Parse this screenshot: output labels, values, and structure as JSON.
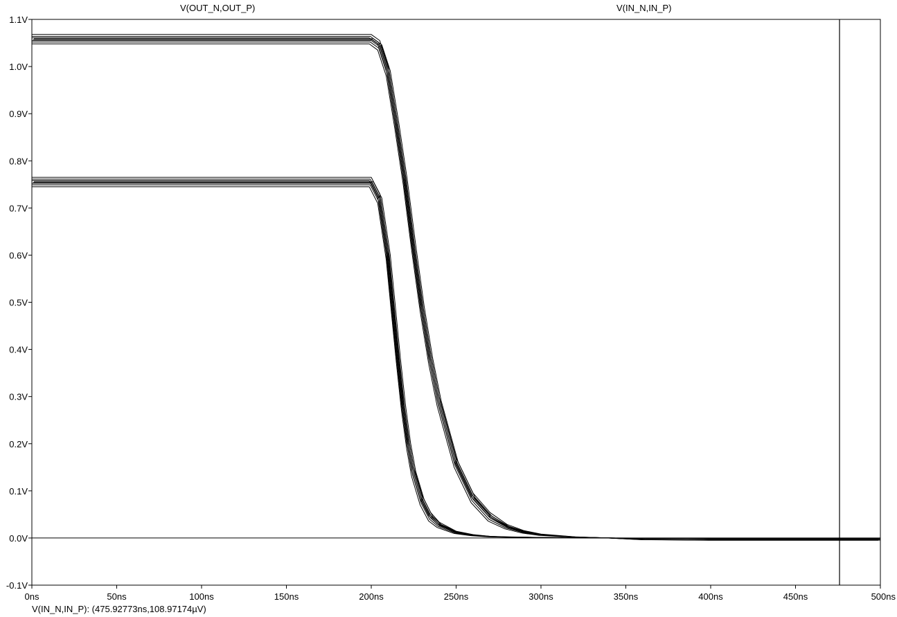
{
  "traces": {
    "out_label": "V(OUT_N,OUT_P)",
    "in_label": "V(IN_N,IN_P)"
  },
  "cursor": {
    "readout": "V(IN_N,IN_P): (475.92773ns,108.97174µV)",
    "time_ns": 475.92773
  },
  "chart_data": {
    "type": "line",
    "xlabel": "",
    "ylabel": "",
    "xlim": [
      0,
      500
    ],
    "ylim": [
      -0.1,
      1.1
    ],
    "x_ticks": [
      0,
      50,
      100,
      150,
      200,
      250,
      300,
      350,
      400,
      450,
      500
    ],
    "x_tick_labels": [
      "0ns",
      "50ns",
      "100ns",
      "150ns",
      "200ns",
      "250ns",
      "300ns",
      "350ns",
      "400ns",
      "450ns",
      "500ns"
    ],
    "y_ticks": [
      -0.1,
      0.0,
      0.1,
      0.2,
      0.3,
      0.4,
      0.5,
      0.6,
      0.7,
      0.8,
      0.9,
      1.0,
      1.1
    ],
    "y_tick_labels": [
      "-0.1V",
      "0.0V",
      "0.1V",
      "0.2V",
      "0.3V",
      "0.4V",
      "0.5V",
      "0.6V",
      "0.7V",
      "0.8V",
      "0.9V",
      "1.0V",
      "1.1V"
    ],
    "grid": false,
    "series": [
      {
        "x": [
          0,
          200,
          205,
          210,
          215,
          220,
          225,
          230,
          235,
          240,
          250,
          260,
          270,
          280,
          290,
          300,
          320,
          340,
          360,
          400,
          500
        ],
        "values": [
          1.058,
          1.058,
          1.045,
          0.99,
          0.88,
          0.76,
          0.62,
          0.49,
          0.38,
          0.29,
          0.16,
          0.085,
          0.045,
          0.024,
          0.013,
          0.007,
          0.002,
          0.0,
          -0.003,
          -0.004,
          -0.004
        ]
      },
      {
        "x": [
          0,
          200,
          205,
          210,
          213,
          216,
          219,
          222,
          225,
          230,
          235,
          240,
          250,
          260,
          270,
          280,
          300,
          340,
          400,
          500
        ],
        "values": [
          0.755,
          0.755,
          0.72,
          0.6,
          0.49,
          0.38,
          0.28,
          0.2,
          0.14,
          0.08,
          0.045,
          0.028,
          0.012,
          0.006,
          0.003,
          0.002,
          0.001,
          0.0,
          -0.001,
          -0.001
        ]
      }
    ]
  }
}
